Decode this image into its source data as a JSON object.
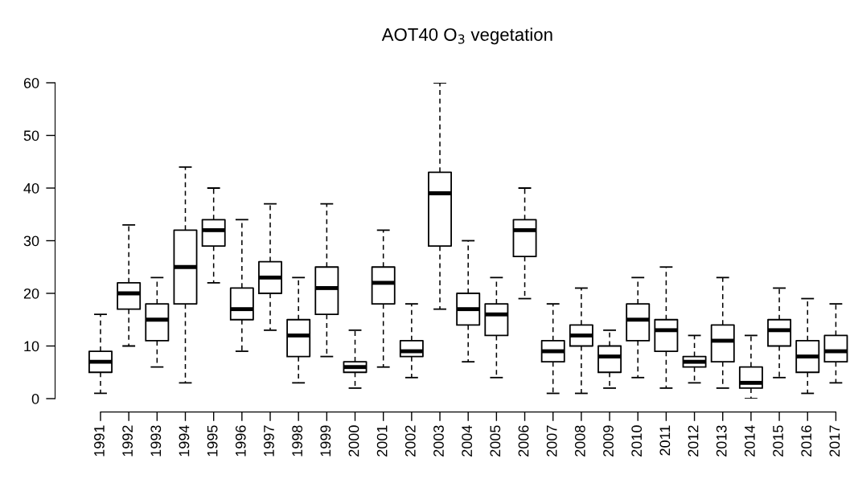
{
  "chart_data": {
    "type": "box",
    "title": "AOT40 O$_{3}$ vegetation",
    "categories": [
      "1991",
      "1992",
      "1993",
      "1994",
      "1995",
      "1996",
      "1997",
      "1998",
      "1999",
      "2000",
      "2001",
      "2002",
      "2003",
      "2004",
      "2005",
      "2006",
      "2007",
      "2008",
      "2009",
      "2010",
      "2011",
      "2012",
      "2013",
      "2014",
      "2015",
      "2016",
      "2017"
    ],
    "boxes": [
      {
        "low": 1,
        "q1": 5,
        "median": 7,
        "q3": 9,
        "high": 16
      },
      {
        "low": 10,
        "q1": 17,
        "median": 20,
        "q3": 22,
        "high": 33
      },
      {
        "low": 6,
        "q1": 11,
        "median": 15,
        "q3": 18,
        "high": 23
      },
      {
        "low": 3,
        "q1": 18,
        "median": 25,
        "q3": 32,
        "high": 44
      },
      {
        "low": 22,
        "q1": 29,
        "median": 32,
        "q3": 34,
        "high": 40
      },
      {
        "low": 9,
        "q1": 15,
        "median": 17,
        "q3": 21,
        "high": 34
      },
      {
        "low": 13,
        "q1": 20,
        "median": 23,
        "q3": 26,
        "high": 37
      },
      {
        "low": 3,
        "q1": 8,
        "median": 12,
        "q3": 15,
        "high": 23
      },
      {
        "low": 8,
        "q1": 16,
        "median": 21,
        "q3": 25,
        "high": 37
      },
      {
        "low": 2,
        "q1": 5,
        "median": 6,
        "q3": 7,
        "high": 13
      },
      {
        "low": 6,
        "q1": 18,
        "median": 22,
        "q3": 25,
        "high": 32
      },
      {
        "low": 4,
        "q1": 8,
        "median": 9,
        "q3": 11,
        "high": 18
      },
      {
        "low": 17,
        "q1": 29,
        "median": 39,
        "q3": 43,
        "high": 60
      },
      {
        "low": 7,
        "q1": 14,
        "median": 17,
        "q3": 20,
        "high": 30
      },
      {
        "low": 4,
        "q1": 12,
        "median": 16,
        "q3": 18,
        "high": 23
      },
      {
        "low": 19,
        "q1": 27,
        "median": 32,
        "q3": 34,
        "high": 40
      },
      {
        "low": 1,
        "q1": 7,
        "median": 9,
        "q3": 11,
        "high": 18
      },
      {
        "low": 1,
        "q1": 10,
        "median": 12,
        "q3": 14,
        "high": 21
      },
      {
        "low": 2,
        "q1": 5,
        "median": 8,
        "q3": 10,
        "high": 13
      },
      {
        "low": 4,
        "q1": 11,
        "median": 15,
        "q3": 18,
        "high": 23
      },
      {
        "low": 2,
        "q1": 9,
        "median": 13,
        "q3": 15,
        "high": 25
      },
      {
        "low": 3,
        "q1": 6,
        "median": 7,
        "q3": 8,
        "high": 12
      },
      {
        "low": 2,
        "q1": 7,
        "median": 11,
        "q3": 14,
        "high": 23
      },
      {
        "low": 0,
        "q1": 2,
        "median": 3,
        "q3": 6,
        "high": 12
      },
      {
        "low": 4,
        "q1": 10,
        "median": 13,
        "q3": 15,
        "high": 21
      },
      {
        "low": 1,
        "q1": 5,
        "median": 8,
        "q3": 11,
        "high": 19
      },
      {
        "low": 3,
        "q1": 7,
        "median": 9,
        "q3": 12,
        "high": 18
      }
    ],
    "ylim": [
      0,
      60
    ],
    "yticks": [
      0,
      10,
      20,
      30,
      40,
      50,
      60
    ],
    "grid": false
  }
}
